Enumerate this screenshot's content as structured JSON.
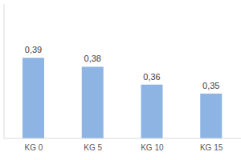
{
  "chart_data": {
    "type": "bar",
    "categories": [
      "KG 0",
      "KG 5",
      "KG 10",
      "KG 15"
    ],
    "values": [
      0.39,
      0.38,
      0.36,
      0.35
    ],
    "value_labels": [
      "0,39",
      "0,38",
      "0,36",
      "0,35"
    ],
    "data_labels": true,
    "color": "#8eb4e3",
    "ylim": [
      0.3,
      0.45
    ],
    "yticks": [
      0.35,
      0.45
    ],
    "grid": true,
    "tick_labels": "x"
  }
}
